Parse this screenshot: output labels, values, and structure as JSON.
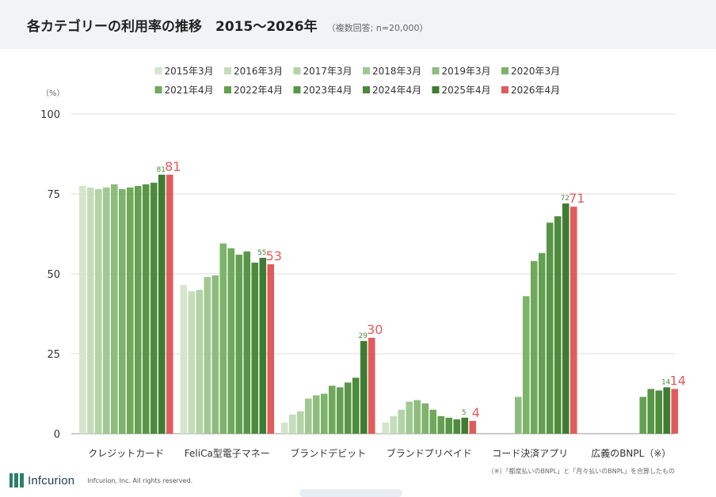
{
  "title": "各カテゴリーの利用率の推移　2015〜2026年",
  "subtitle": "（複数回答; n=20,000）",
  "footnote": "（※）「都度払いのBNPL」と「月々払いのBNPL」を合算したもの",
  "brand": "Infcurion",
  "copyright": "Infcurion, Inc.  All rights reserved.",
  "chart_data": {
    "type": "bar",
    "ylabel": "（%）",
    "ylim": [
      0,
      100
    ],
    "yticks": [
      0,
      25,
      50,
      75,
      100
    ],
    "grid": true,
    "legend_position": "top",
    "categories": [
      "クレジットカード",
      "FeliCa型電子マネー",
      "ブランドデビット",
      "ブランドプリペイド",
      "コード決済アプリ",
      "広義のBNPL（※）"
    ],
    "series": [
      {
        "name": "2015年3月",
        "color": "#d4e5cc",
        "values": [
          77.5,
          46.5,
          3.5,
          3.5,
          null,
          null
        ]
      },
      {
        "name": "2016年3月",
        "color": "#c5ddbb",
        "values": [
          77,
          44.5,
          6,
          5.5,
          null,
          null
        ]
      },
      {
        "name": "2017年3月",
        "color": "#b4d3a7",
        "values": [
          76.5,
          45,
          7,
          7.5,
          null,
          null
        ]
      },
      {
        "name": "2018年3月",
        "color": "#a2c892",
        "values": [
          77,
          49,
          11,
          10,
          null,
          null
        ]
      },
      {
        "name": "2019年3月",
        "color": "#8fbc7e",
        "values": [
          78,
          49.5,
          12,
          10.5,
          11.5,
          null
        ]
      },
      {
        "name": "2020年3月",
        "color": "#7db36a",
        "values": [
          76.5,
          59.5,
          12.5,
          9.5,
          43,
          null
        ]
      },
      {
        "name": "2021年4月",
        "color": "#6fa95b",
        "values": [
          77,
          58,
          15,
          7.5,
          54,
          null
        ]
      },
      {
        "name": "2022年4月",
        "color": "#64a051",
        "values": [
          77.5,
          56,
          14.5,
          5.5,
          56.5,
          11.5
        ]
      },
      {
        "name": "2023年4月",
        "color": "#589546",
        "values": [
          78,
          57,
          16,
          5,
          66,
          14
        ]
      },
      {
        "name": "2024年4月",
        "color": "#4c8a3c",
        "values": [
          78.5,
          53.5,
          17.5,
          4.5,
          68,
          13.5
        ]
      },
      {
        "name": "2025年4月",
        "color": "#3f7c32",
        "values": [
          81,
          55,
          29,
          5,
          72,
          14.5
        ]
      },
      {
        "name": "2026年4月",
        "color": "#e05c5c",
        "values": [
          81,
          53,
          30,
          4,
          71,
          14
        ]
      }
    ],
    "data_labels": [
      {
        "category": "クレジットカード",
        "series": "2025年4月",
        "text": "81"
      },
      {
        "category": "クレジットカード",
        "series": "2026年4月",
        "text": "81"
      },
      {
        "category": "FeliCa型電子マネー",
        "series": "2025年4月",
        "text": "55"
      },
      {
        "category": "FeliCa型電子マネー",
        "series": "2026年4月",
        "text": "53"
      },
      {
        "category": "ブランドデビット",
        "series": "2025年4月",
        "text": "29"
      },
      {
        "category": "ブランドデビット",
        "series": "2026年4月",
        "text": "30"
      },
      {
        "category": "ブランドプリペイド",
        "series": "2025年4月",
        "text": "5"
      },
      {
        "category": "ブランドプリペイド",
        "series": "2026年4月",
        "text": "4"
      },
      {
        "category": "コード決済アプリ",
        "series": "2025年4月",
        "text": "72"
      },
      {
        "category": "コード決済アプリ",
        "series": "2026年4月",
        "text": "71"
      },
      {
        "category": "広義のBNPL（※）",
        "series": "2025年4月",
        "text": "14"
      },
      {
        "category": "広義のBNPL（※）",
        "series": "2026年4月",
        "text": "14"
      }
    ]
  }
}
